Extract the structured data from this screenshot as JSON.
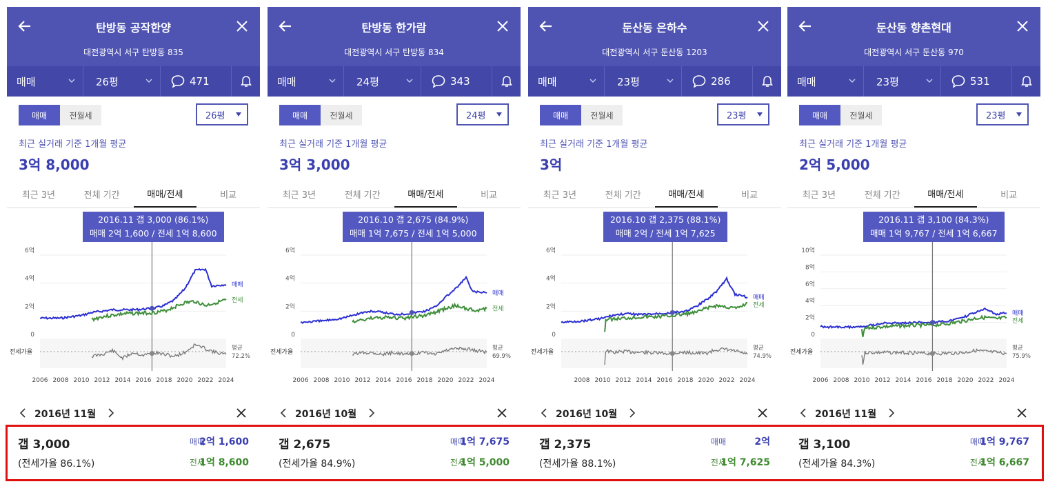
{
  "panels": [
    {
      "title": "탄방동 공작한양",
      "address": "대전광역시 서구 탄방동 835",
      "trade_type": "매매",
      "size": "26평",
      "comments": "471",
      "toggle": [
        "매매",
        "전월세"
      ],
      "size_select": "26평",
      "basis": "최근 실거래 기준 1개월 평균",
      "avg_price": "3억 8,000",
      "tabs": [
        "최근 3년",
        "전체 기간",
        "매매/전세",
        "비교"
      ],
      "tooltip": {
        "line1": "2016.11  갭 3,000 (86.1%)",
        "line2": "매매 2억 1,600 / 전세 1억 8,600"
      },
      "date": "2016년 11월",
      "gap": "갭 3,000",
      "ratio": "(전세가율 86.1%)",
      "sale_label": "매매",
      "sale_value": "2억 1,600",
      "jeonse_label": "전세",
      "jeonse_value": "1억 8,600",
      "chart": {
        "y_ticks": [
          "6억",
          "4억",
          "2억",
          "0"
        ],
        "ymax": 6,
        "ratio_label": "전세가율",
        "avg_label": "평균",
        "avg_value": "72.2%",
        "sale_series": "매매",
        "jeonse_series": "전세",
        "x_ticks": [
          "2006",
          "2008",
          "2010",
          "2012",
          "2014",
          "2016",
          "2018",
          "2020",
          "2022",
          "2024"
        ],
        "x_start": 2006,
        "cursor": 2016.83,
        "sale": [
          [
            2006,
            1.5
          ],
          [
            2008,
            1.5
          ],
          [
            2010,
            1.7
          ],
          [
            2011,
            1.9
          ],
          [
            2012,
            2.0
          ],
          [
            2013,
            2.1
          ],
          [
            2014,
            2.1
          ],
          [
            2015,
            2.1
          ],
          [
            2016,
            2.15
          ],
          [
            2017,
            2.2
          ],
          [
            2018,
            2.4
          ],
          [
            2019,
            2.8
          ],
          [
            2020,
            3.6
          ],
          [
            2021,
            4.9
          ],
          [
            2022,
            5.0
          ],
          [
            2022.6,
            3.8
          ],
          [
            2024,
            3.9
          ]
        ],
        "jeonse": [
          [
            2011,
            1.4
          ],
          [
            2012,
            1.6
          ],
          [
            2013,
            1.7
          ],
          [
            2014,
            1.8
          ],
          [
            2015,
            1.85
          ],
          [
            2016,
            1.86
          ],
          [
            2017,
            1.9
          ],
          [
            2018,
            2.0
          ],
          [
            2019,
            2.3
          ],
          [
            2020,
            2.6
          ],
          [
            2021,
            2.7
          ],
          [
            2022,
            2.4
          ],
          [
            2023,
            2.6
          ],
          [
            2024,
            2.8
          ]
        ],
        "ratio_line": [
          [
            2011,
            0.6
          ],
          [
            2012,
            0.5
          ],
          [
            2013,
            0.3
          ],
          [
            2014,
            0.7
          ],
          [
            2015,
            0.4
          ],
          [
            2016,
            0.55
          ],
          [
            2017,
            0.4
          ],
          [
            2018,
            0.5
          ],
          [
            2019,
            0.6
          ],
          [
            2020,
            0.4
          ],
          [
            2021,
            0.0
          ],
          [
            2022,
            0.2
          ],
          [
            2023,
            0.4
          ],
          [
            2024,
            0.5
          ]
        ]
      }
    },
    {
      "title": "탄방동 한가람",
      "address": "대전광역시 서구 탄방동 834",
      "trade_type": "매매",
      "size": "24평",
      "comments": "343",
      "toggle": [
        "매매",
        "전월세"
      ],
      "size_select": "24평",
      "basis": "최근 실거래 기준 1개월 평균",
      "avg_price": "3억 3,000",
      "tabs": [
        "최근 3년",
        "전체 기간",
        "매매/전세",
        "비교"
      ],
      "tooltip": {
        "line1": "2016.10  갭 2,675 (84.9%)",
        "line2": "매매 1억 7,675 / 전세 1억 5,000"
      },
      "date": "2016년 10월",
      "gap": "갭 2,675",
      "ratio": "(전세가율 84.9%)",
      "sale_label": "매매",
      "sale_value": "1억 7,675",
      "jeonse_label": "전세",
      "jeonse_value": "1억 5,000",
      "chart": {
        "y_ticks": [
          "6억",
          "4억",
          "2억",
          "0"
        ],
        "ymax": 6,
        "ratio_label": "전세가율",
        "avg_label": "평균",
        "avg_value": "69.9%",
        "sale_series": "매매",
        "jeonse_series": "전세",
        "x_ticks": [
          "2006",
          "2008",
          "2010",
          "2012",
          "2014",
          "2016",
          "2018",
          "2020",
          "2022",
          "2024"
        ],
        "x_start": 2006,
        "cursor": 2016.75,
        "sale": [
          [
            2006,
            1.2
          ],
          [
            2008,
            1.3
          ],
          [
            2010,
            1.5
          ],
          [
            2011,
            1.7
          ],
          [
            2012,
            1.9
          ],
          [
            2013,
            2.0
          ],
          [
            2014,
            1.9
          ],
          [
            2015,
            1.8
          ],
          [
            2016,
            1.8
          ],
          [
            2017,
            1.9
          ],
          [
            2018,
            2.0
          ],
          [
            2019,
            2.3
          ],
          [
            2020,
            3.0
          ],
          [
            2021,
            3.6
          ],
          [
            2022,
            4.4
          ],
          [
            2022.6,
            3.4
          ],
          [
            2024,
            3.3
          ]
        ],
        "jeonse": [
          [
            2011,
            1.2
          ],
          [
            2012,
            1.4
          ],
          [
            2013,
            1.5
          ],
          [
            2014,
            1.55
          ],
          [
            2015,
            1.5
          ],
          [
            2016,
            1.5
          ],
          [
            2017,
            1.6
          ],
          [
            2018,
            1.7
          ],
          [
            2019,
            1.9
          ],
          [
            2020,
            2.2
          ],
          [
            2021,
            2.4
          ],
          [
            2022,
            2.2
          ],
          [
            2023,
            2.0
          ],
          [
            2024,
            2.2
          ]
        ],
        "ratio_line": [
          [
            2011,
            0.5
          ],
          [
            2012,
            0.4
          ],
          [
            2013,
            0.4
          ],
          [
            2014,
            0.5
          ],
          [
            2015,
            0.4
          ],
          [
            2016,
            0.5
          ],
          [
            2017,
            0.45
          ],
          [
            2018,
            0.4
          ],
          [
            2019,
            0.5
          ],
          [
            2020,
            0.3
          ],
          [
            2021,
            0.2
          ],
          [
            2022,
            0.2
          ],
          [
            2023,
            0.3
          ],
          [
            2024,
            0.4
          ]
        ]
      }
    },
    {
      "title": "둔산동 은하수",
      "address": "대전광역시 서구 둔산동 1203",
      "trade_type": "매매",
      "size": "23평",
      "comments": "286",
      "toggle": [
        "매매",
        "전월세"
      ],
      "size_select": "23평",
      "basis": "최근 실거래 기준 1개월 평균",
      "avg_price": "3억",
      "tabs": [
        "최근 3년",
        "전체 기간",
        "매매/전세",
        "비교"
      ],
      "tooltip": {
        "line1": "2016.10  갭 2,375 (88.1%)",
        "line2": "매매 2억 / 전세 1억 7,625"
      },
      "date": "2016년 10월",
      "gap": "갭 2,375",
      "ratio": "(전세가율 88.1%)",
      "sale_label": "매매",
      "sale_value": "2억",
      "jeonse_label": "전세",
      "jeonse_value": "1억 7,625",
      "chart": {
        "y_ticks": [
          "6억",
          "4억",
          "2억",
          "0"
        ],
        "ymax": 6,
        "ratio_label": "전세가율",
        "avg_label": "평균",
        "avg_value": "74.9%",
        "sale_series": "매매",
        "jeonse_series": "전세",
        "x_ticks": [
          "2008",
          "2010",
          "2012",
          "2014",
          "2016",
          "2018",
          "2020",
          "2022",
          "2024"
        ],
        "x_start": 2006,
        "cursor": 2016.75,
        "sale": [
          [
            2006,
            1.2
          ],
          [
            2008,
            1.3
          ],
          [
            2010,
            1.5
          ],
          [
            2011,
            1.7
          ],
          [
            2012,
            1.8
          ],
          [
            2013,
            1.8
          ],
          [
            2014,
            1.75
          ],
          [
            2015,
            1.8
          ],
          [
            2016,
            1.85
          ],
          [
            2017,
            1.9
          ],
          [
            2018,
            2.0
          ],
          [
            2019,
            2.3
          ],
          [
            2020,
            2.8
          ],
          [
            2021,
            3.4
          ],
          [
            2022,
            4.3
          ],
          [
            2022.8,
            3.2
          ],
          [
            2024,
            3.0
          ]
        ],
        "jeonse": [
          [
            2010.2,
            0.5
          ],
          [
            2010.3,
            1.4
          ],
          [
            2012,
            1.5
          ],
          [
            2013,
            1.55
          ],
          [
            2014,
            1.6
          ],
          [
            2015,
            1.6
          ],
          [
            2016,
            1.65
          ],
          [
            2017,
            1.7
          ],
          [
            2018,
            1.8
          ],
          [
            2019,
            1.9
          ],
          [
            2020,
            2.2
          ],
          [
            2021,
            2.4
          ],
          [
            2022,
            2.3
          ],
          [
            2023,
            2.2
          ],
          [
            2024,
            2.6
          ]
        ],
        "ratio_line": [
          [
            2010.2,
            1.0
          ],
          [
            2010.3,
            0.3
          ],
          [
            2011,
            0.4
          ],
          [
            2012,
            0.35
          ],
          [
            2014,
            0.4
          ],
          [
            2016,
            0.45
          ],
          [
            2018,
            0.4
          ],
          [
            2020,
            0.45
          ],
          [
            2021,
            0.25
          ],
          [
            2022,
            0.25
          ],
          [
            2023,
            0.35
          ],
          [
            2024,
            0.5
          ]
        ]
      }
    },
    {
      "title": "둔산동 향촌현대",
      "address": "대전광역시 서구 둔산동 970",
      "trade_type": "매매",
      "size": "23평",
      "comments": "531",
      "toggle": [
        "매매",
        "전월세"
      ],
      "size_select": "23평",
      "basis": "최근 실거래 기준 1개월 평균",
      "avg_price": "2억 5,000",
      "tabs": [
        "최근 3년",
        "전체 기간",
        "매매/전세",
        "비교"
      ],
      "tooltip": {
        "line1": "2016.11  갭 3,100 (84.3%)",
        "line2": "매매 1억 9,767 / 전세 1억 6,667"
      },
      "date": "2016년 11월",
      "gap": "갭 3,100",
      "ratio": "(전세가율 84.3%)",
      "sale_label": "매매",
      "sale_value": "1억 9,767",
      "jeonse_label": "전세",
      "jeonse_value": "1억 6,667",
      "chart": {
        "y_ticks": [
          "10억",
          "8억",
          "6억",
          "4억",
          "2억",
          "0"
        ],
        "ymax": 10,
        "ratio_label": "전세가율",
        "avg_label": "평균",
        "avg_value": "75.9%",
        "sale_series": "매매",
        "jeonse_series": "전세",
        "x_ticks": [
          "2006",
          "2008",
          "2010",
          "2012",
          "2014",
          "2016",
          "2018",
          "2020",
          "2022",
          "2024"
        ],
        "x_start": 2006,
        "cursor": 2016.83,
        "sale": [
          [
            2006,
            1.5
          ],
          [
            2008,
            1.4
          ],
          [
            2010,
            1.5
          ],
          [
            2011,
            1.7
          ],
          [
            2012,
            1.9
          ],
          [
            2013,
            1.9
          ],
          [
            2014,
            1.9
          ],
          [
            2015,
            1.95
          ],
          [
            2016,
            2.0
          ],
          [
            2017,
            2.0
          ],
          [
            2018,
            2.1
          ],
          [
            2019,
            2.3
          ],
          [
            2020,
            2.7
          ],
          [
            2021,
            3.2
          ],
          [
            2022,
            3.6
          ],
          [
            2023,
            3.0
          ],
          [
            2024,
            3.1
          ]
        ],
        "jeonse": [
          [
            2010,
            1.2
          ],
          [
            2010.1,
            0.2
          ],
          [
            2010.3,
            1.3
          ],
          [
            2012,
            1.5
          ],
          [
            2013,
            1.55
          ],
          [
            2014,
            1.6
          ],
          [
            2015,
            1.65
          ],
          [
            2016,
            1.67
          ],
          [
            2017,
            1.7
          ],
          [
            2018,
            1.8
          ],
          [
            2019,
            2.0
          ],
          [
            2020,
            2.2
          ],
          [
            2021,
            2.5
          ],
          [
            2022,
            2.6
          ],
          [
            2023,
            2.4
          ],
          [
            2024,
            2.6
          ]
        ],
        "ratio_line": [
          [
            2010,
            0.5
          ],
          [
            2010.1,
            1.0
          ],
          [
            2010.3,
            0.4
          ],
          [
            2012,
            0.4
          ],
          [
            2014,
            0.4
          ],
          [
            2016,
            0.45
          ],
          [
            2018,
            0.45
          ],
          [
            2020,
            0.4
          ],
          [
            2021,
            0.3
          ],
          [
            2022,
            0.35
          ],
          [
            2023,
            0.4
          ],
          [
            2024,
            0.45
          ]
        ]
      }
    }
  ]
}
